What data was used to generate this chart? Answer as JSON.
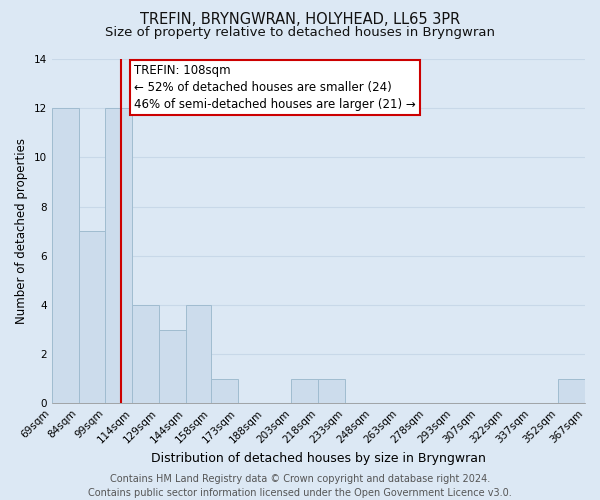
{
  "title": "TREFIN, BRYNGWRAN, HOLYHEAD, LL65 3PR",
  "subtitle": "Size of property relative to detached houses in Bryngwran",
  "xlabel": "Distribution of detached houses by size in Bryngwran",
  "ylabel": "Number of detached properties",
  "footer_line1": "Contains HM Land Registry data © Crown copyright and database right 2024.",
  "footer_line2": "Contains public sector information licensed under the Open Government Licence v3.0.",
  "bar_left_edges": [
    69,
    84,
    99,
    114,
    129,
    144,
    158,
    173,
    188,
    203,
    218,
    233,
    248,
    263,
    278,
    293,
    307,
    322,
    337,
    352
  ],
  "bar_right_edges": [
    84,
    99,
    114,
    129,
    144,
    158,
    173,
    188,
    203,
    218,
    233,
    248,
    263,
    278,
    293,
    307,
    322,
    337,
    352,
    367
  ],
  "bar_heights": [
    12,
    7,
    12,
    4,
    3,
    4,
    1,
    0,
    0,
    1,
    1,
    0,
    0,
    0,
    0,
    0,
    0,
    0,
    0,
    1
  ],
  "bar_color": "#ccdcec",
  "bar_edge_color": "#a0bcd0",
  "trefin_value": 108,
  "trefin_line_color": "#cc0000",
  "annotation_line1": "TREFIN: 108sqm",
  "annotation_line2": "← 52% of detached houses are smaller (24)",
  "annotation_line3": "46% of semi-detached houses are larger (21) →",
  "annotation_box_color": "#ffffff",
  "annotation_box_edge_color": "#cc0000",
  "ylim": [
    0,
    14
  ],
  "yticks": [
    0,
    2,
    4,
    6,
    8,
    10,
    12,
    14
  ],
  "grid_color": "#c8d8e8",
  "background_color": "#dce8f4",
  "plot_bg_color": "#dce8f4",
  "title_fontsize": 10.5,
  "subtitle_fontsize": 9.5,
  "xlabel_fontsize": 9,
  "ylabel_fontsize": 8.5,
  "tick_fontsize": 7.5,
  "footer_fontsize": 7,
  "annotation_fontsize": 8.5,
  "xtick_labels": [
    "69sqm",
    "84sqm",
    "99sqm",
    "114sqm",
    "129sqm",
    "144sqm",
    "158sqm",
    "173sqm",
    "188sqm",
    "203sqm",
    "218sqm",
    "233sqm",
    "248sqm",
    "263sqm",
    "278sqm",
    "293sqm",
    "307sqm",
    "322sqm",
    "337sqm",
    "352sqm",
    "367sqm"
  ]
}
